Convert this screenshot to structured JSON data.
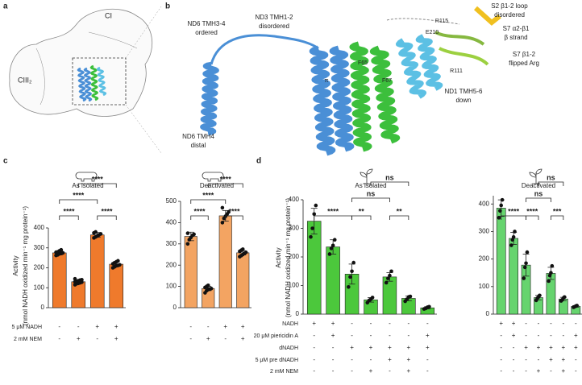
{
  "panel_labels": [
    "a",
    "b",
    "c",
    "d"
  ],
  "panel_a": {
    "labels": [
      "CI",
      "CIII₂"
    ]
  },
  "panel_b": {
    "labels": [
      {
        "text": "ND6 TMH3-4",
        "sub": "ordered",
        "color": "#4a8fd6"
      },
      {
        "text": "ND3 TMH1-2",
        "sub": "disordered",
        "color": "#3cbf3c"
      },
      {
        "text": "S2 β1-2 loop",
        "sub": "disordered",
        "color": "#f0a830"
      },
      {
        "text": "S7 α2-β1",
        "sub": "β strand",
        "color": "#86b840"
      },
      {
        "text": "S7 β1-2",
        "sub": "flipped Arg",
        "color": "#8cc83c"
      },
      {
        "text": "ND1 TMH5-6",
        "sub": "down",
        "color": "#5cc0e4"
      },
      {
        "text": "ND6 TMH4",
        "sub": "distal",
        "color": "#4a8fd6"
      }
    ],
    "residues": [
      {
        "text": "R115",
        "color": "#5cbf3c"
      },
      {
        "text": "E210",
        "color": "#4a8fd6"
      },
      {
        "text": "R111",
        "color": "#5cbf3c"
      },
      {
        "text": "F65",
        "color": "#4a8fd6"
      },
      {
        "text": "F67",
        "color": "#4a8fd6"
      },
      {
        "text": "π",
        "color": "#444444"
      }
    ]
  },
  "chart_data": [
    {
      "type": "bar",
      "title": "As isolated",
      "color": "#ef7a2c",
      "ylabel": [
        "Activity",
        "(nmol NADH oxidized min⁻¹ mg protein⁻¹)"
      ],
      "values": [
        275,
        130,
        365,
        218
      ],
      "errors": [
        10,
        8,
        12,
        12
      ],
      "points": [
        [
          262,
          265,
          270,
          272,
          275,
          278,
          280,
          285,
          290
        ],
        [
          115,
          120,
          122,
          125,
          128,
          130,
          132,
          135,
          138,
          140,
          145
        ],
        [
          350,
          355,
          360,
          365,
          370,
          375,
          380
        ],
        [
          200,
          205,
          210,
          212,
          215,
          220,
          225,
          230,
          235
        ]
      ],
      "ylim": [
        0,
        400
      ],
      "yticks": [
        0,
        100,
        200,
        300,
        400
      ],
      "comparisons": [
        {
          "pair": [
            0,
            1
          ],
          "label": "****"
        },
        {
          "pair": [
            2,
            3
          ],
          "label": "****"
        },
        {
          "pair": [
            0,
            2
          ],
          "label": "****"
        },
        {
          "pair": [
            1,
            3
          ],
          "label": "****"
        }
      ],
      "conditions": [
        {
          "name": "5 μM NADH",
          "signs": [
            "-",
            "-",
            "+",
            "+"
          ]
        },
        {
          "name": "2 mM NEM",
          "signs": [
            "-",
            "+",
            "-",
            "+"
          ]
        }
      ]
    },
    {
      "type": "bar",
      "title": "Deactivated",
      "color": "#f3a462",
      "values": [
        335,
        90,
        432,
        258
      ],
      "errors": [
        20,
        10,
        25,
        10
      ],
      "points": [
        [
          300,
          320,
          330,
          340,
          345,
          350
        ],
        [
          70,
          80,
          85,
          88,
          90,
          95,
          100,
          105
        ],
        [
          400,
          420,
          430,
          440,
          450,
          470
        ],
        [
          240,
          245,
          250,
          255,
          260,
          265,
          270,
          275
        ]
      ],
      "ylim": [
        0,
        500
      ],
      "yticks": [
        0,
        100,
        200,
        300,
        400,
        500
      ],
      "comparisons": [
        {
          "pair": [
            0,
            1
          ],
          "label": "****"
        },
        {
          "pair": [
            2,
            3
          ],
          "label": "****"
        },
        {
          "pair": [
            0,
            2
          ],
          "label": "****"
        },
        {
          "pair": [
            1,
            3
          ],
          "label": "****"
        }
      ],
      "conditions": [
        {
          "signs": [
            "-",
            "-",
            "+",
            "+"
          ]
        },
        {
          "signs": [
            "-",
            "+",
            "-",
            "+"
          ]
        }
      ]
    },
    {
      "type": "bar",
      "title": "As isolated",
      "color": "#4cc83c",
      "ylabel": [
        "Activity",
        "(nmol NADH oxidized min⁻¹ mg protein⁻¹)"
      ],
      "values": [
        325,
        235,
        140,
        50,
        130,
        55,
        22
      ],
      "errors": [
        45,
        25,
        35,
        8,
        15,
        8,
        4
      ],
      "points": [
        [
          270,
          300,
          350,
          380
        ],
        [
          210,
          230,
          240,
          260
        ],
        [
          95,
          130,
          150,
          180
        ],
        [
          40,
          48,
          52,
          58
        ],
        [
          110,
          125,
          135,
          150
        ],
        [
          45,
          52,
          60,
          62
        ],
        [
          18,
          20,
          24,
          26
        ]
      ],
      "ylim": [
        0,
        400
      ],
      "yticks": [
        0,
        100,
        200,
        300,
        400
      ],
      "comparisons": [
        {
          "pair": [
            0,
            2
          ],
          "label": "****"
        },
        {
          "pair": [
            2,
            3
          ],
          "label": "**"
        },
        {
          "pair": [
            4,
            5
          ],
          "label": "**"
        },
        {
          "pair": [
            2,
            4
          ],
          "label": "ns"
        },
        {
          "pair": [
            3,
            5
          ],
          "label": "ns"
        }
      ],
      "conditions": [
        {
          "name": "NADH",
          "signs": [
            "+",
            "+",
            "-",
            "-",
            "-",
            "-",
            "-"
          ]
        },
        {
          "name": "20 μM piericidin A",
          "signs": [
            "-",
            "+",
            "-",
            "-",
            "-",
            "-",
            "+"
          ]
        },
        {
          "name": "dNADH",
          "signs": [
            "-",
            "-",
            "+",
            "+",
            "+",
            "+",
            "+"
          ]
        },
        {
          "name": "5 μM pre dNADH",
          "signs": [
            "-",
            "-",
            "-",
            "-",
            "+",
            "+",
            "-"
          ]
        },
        {
          "name": "2 mM NEM",
          "signs": [
            "-",
            "-",
            "-",
            "+",
            "-",
            "+",
            "-"
          ]
        }
      ]
    },
    {
      "type": "bar",
      "title": "Deactivated",
      "color": "#66d46e",
      "values": [
        385,
        275,
        178,
        60,
        148,
        55,
        28
      ],
      "errors": [
        30,
        22,
        40,
        8,
        22,
        6,
        3
      ],
      "points": [
        [
          350,
          375,
          395,
          415
        ],
        [
          250,
          270,
          280,
          300
        ],
        [
          130,
          170,
          185,
          225
        ],
        [
          50,
          58,
          62,
          68
        ],
        [
          120,
          140,
          150,
          175
        ],
        [
          48,
          52,
          58,
          62
        ],
        [
          25,
          27,
          29,
          31
        ]
      ],
      "ylim": [
        0,
        430
      ],
      "yticks": [
        0,
        100,
        200,
        300,
        400
      ],
      "comparisons": [
        {
          "pair": [
            0,
            2
          ],
          "label": "****"
        },
        {
          "pair": [
            2,
            3
          ],
          "label": "****"
        },
        {
          "pair": [
            4,
            5
          ],
          "label": "***"
        },
        {
          "pair": [
            2,
            4
          ],
          "label": "ns"
        },
        {
          "pair": [
            3,
            5
          ],
          "label": "ns"
        }
      ],
      "conditions": [
        {
          "signs": [
            "+",
            "+",
            "-",
            "-",
            "-",
            "-",
            "-"
          ]
        },
        {
          "signs": [
            "-",
            "+",
            "-",
            "-",
            "-",
            "-",
            "+"
          ]
        },
        {
          "signs": [
            "-",
            "-",
            "+",
            "+",
            "+",
            "+",
            "+"
          ]
        },
        {
          "signs": [
            "-",
            "-",
            "-",
            "-",
            "+",
            "+",
            "-"
          ]
        },
        {
          "signs": [
            "-",
            "-",
            "-",
            "+",
            "-",
            "+",
            "-"
          ]
        }
      ]
    }
  ]
}
